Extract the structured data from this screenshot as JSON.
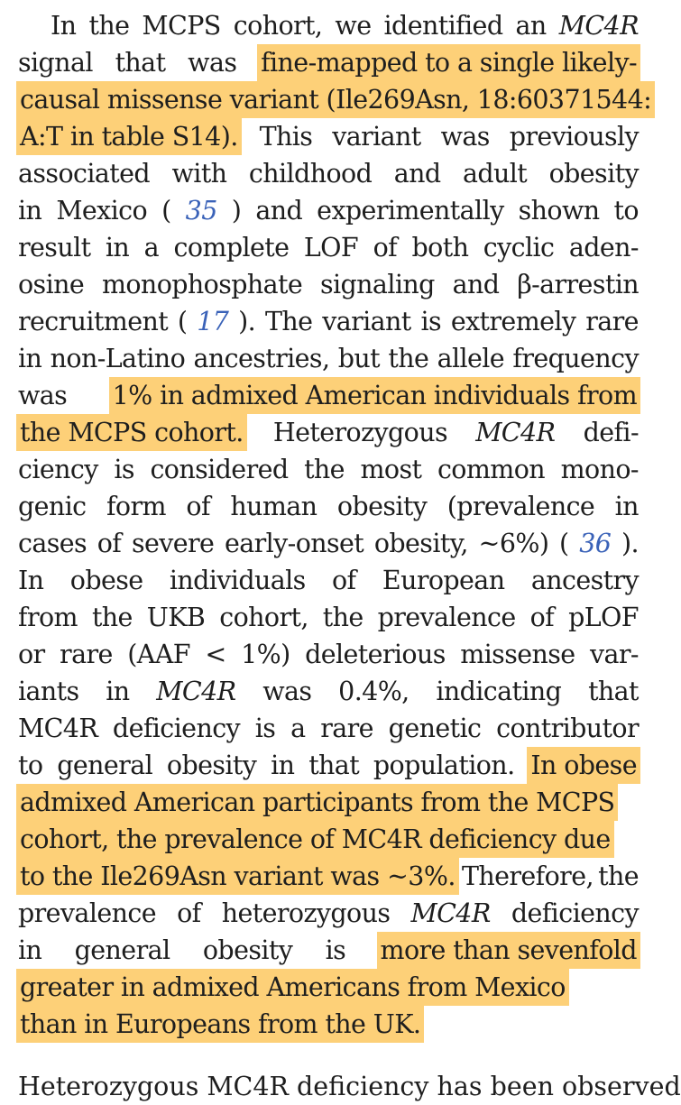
{
  "lines": [
    {
      "first": true,
      "parts": [
        {
          "t": "In the MCPS cohort, we identified an"
        },
        {
          "t": "MC4R",
          "s": "it"
        }
      ]
    },
    {
      "parts": [
        {
          "t": "signal that was"
        },
        {
          "t": "fine-mapped to a single likely-",
          "s": "hl"
        }
      ]
    },
    {
      "parts": [
        {
          "t": "causal missense variant (Ile269Asn, 18:60371544:",
          "s": "hl"
        }
      ]
    },
    {
      "parts": [
        {
          "t": "A:T in table S14).",
          "s": "hl"
        },
        {
          "t": "This variant was previously"
        }
      ]
    },
    {
      "parts": [
        {
          "t": "associated with childhood and adult obesity"
        }
      ]
    },
    {
      "parts": [
        {
          "t": "in Mexico ("
        },
        {
          "t": "35",
          "s": "ref"
        },
        {
          "t": ") and experimentally shown to"
        }
      ]
    },
    {
      "parts": [
        {
          "t": "result in a complete LOF of both cyclic aden-"
        }
      ]
    },
    {
      "parts": [
        {
          "t": "osine monophosphate signaling and β-arrestin"
        }
      ]
    },
    {
      "parts": [
        {
          "t": "recruitment ("
        },
        {
          "t": "17",
          "s": "ref"
        },
        {
          "t": "). The variant is extremely rare"
        }
      ]
    },
    {
      "parts": [
        {
          "t": "in non-Latino ancestries, but the allele frequency"
        }
      ]
    },
    {
      "parts": [
        {
          "t": "was"
        },
        {
          "t": "1% in admixed American individuals from",
          "s": "hl"
        }
      ]
    },
    {
      "parts": [
        {
          "t": "the MCPS cohort.",
          "s": "hl"
        },
        {
          "t": "Heterozygous"
        },
        {
          "t": "MC4R",
          "s": "it"
        },
        {
          "t": "defi-"
        }
      ]
    },
    {
      "parts": [
        {
          "t": "ciency is considered the most common mono-"
        }
      ]
    },
    {
      "parts": [
        {
          "t": "genic form of human obesity (prevalence in"
        }
      ]
    },
    {
      "parts": [
        {
          "t": "cases of severe early-onset obesity, ~6%) ("
        },
        {
          "t": "36",
          "s": "ref"
        },
        {
          "t": ")."
        }
      ]
    },
    {
      "parts": [
        {
          "t": "In obese individuals of European ancestry"
        }
      ]
    },
    {
      "parts": [
        {
          "t": "from the UKB cohort, the prevalence of pLOF"
        }
      ]
    },
    {
      "parts": [
        {
          "t": "or rare (AAF < 1%) deleterious missense var-"
        }
      ]
    },
    {
      "parts": [
        {
          "t": "iants in"
        },
        {
          "t": "MC4R",
          "s": "it"
        },
        {
          "t": "was 0.4%, indicating that"
        }
      ]
    },
    {
      "parts": [
        {
          "t": "MC4R deficiency is a rare genetic contributor"
        }
      ]
    },
    {
      "parts": [
        {
          "t": "to general obesity in that population."
        },
        {
          "t": "In obese",
          "s": "hl"
        }
      ]
    },
    {
      "parts": [
        {
          "t": "admixed American participants from the MCPS",
          "s": "hl"
        }
      ]
    },
    {
      "parts": [
        {
          "t": "cohort, the prevalence of MC4R deficiency due",
          "s": "hl"
        }
      ]
    },
    {
      "parts": [
        {
          "t": "to the Ile269Asn variant was ~3%.",
          "s": "hl"
        },
        {
          "t": "Therefore, the"
        }
      ]
    },
    {
      "parts": [
        {
          "t": "prevalence of heterozygous"
        },
        {
          "t": "MC4R",
          "s": "it"
        },
        {
          "t": "deficiency"
        }
      ]
    },
    {
      "parts": [
        {
          "t": "in general obesity is"
        },
        {
          "t": "more than sevenfold",
          "s": "hl"
        }
      ]
    },
    {
      "parts": [
        {
          "t": "greater in admixed Americans from Mexico",
          "s": "hl"
        }
      ]
    },
    {
      "last": true,
      "parts": [
        {
          "t": "than in Europeans from the UK.",
          "s": "hl"
        }
      ]
    }
  ],
  "cutoff_text": "Heterozygous MC4R deficiency has been observed"
}
